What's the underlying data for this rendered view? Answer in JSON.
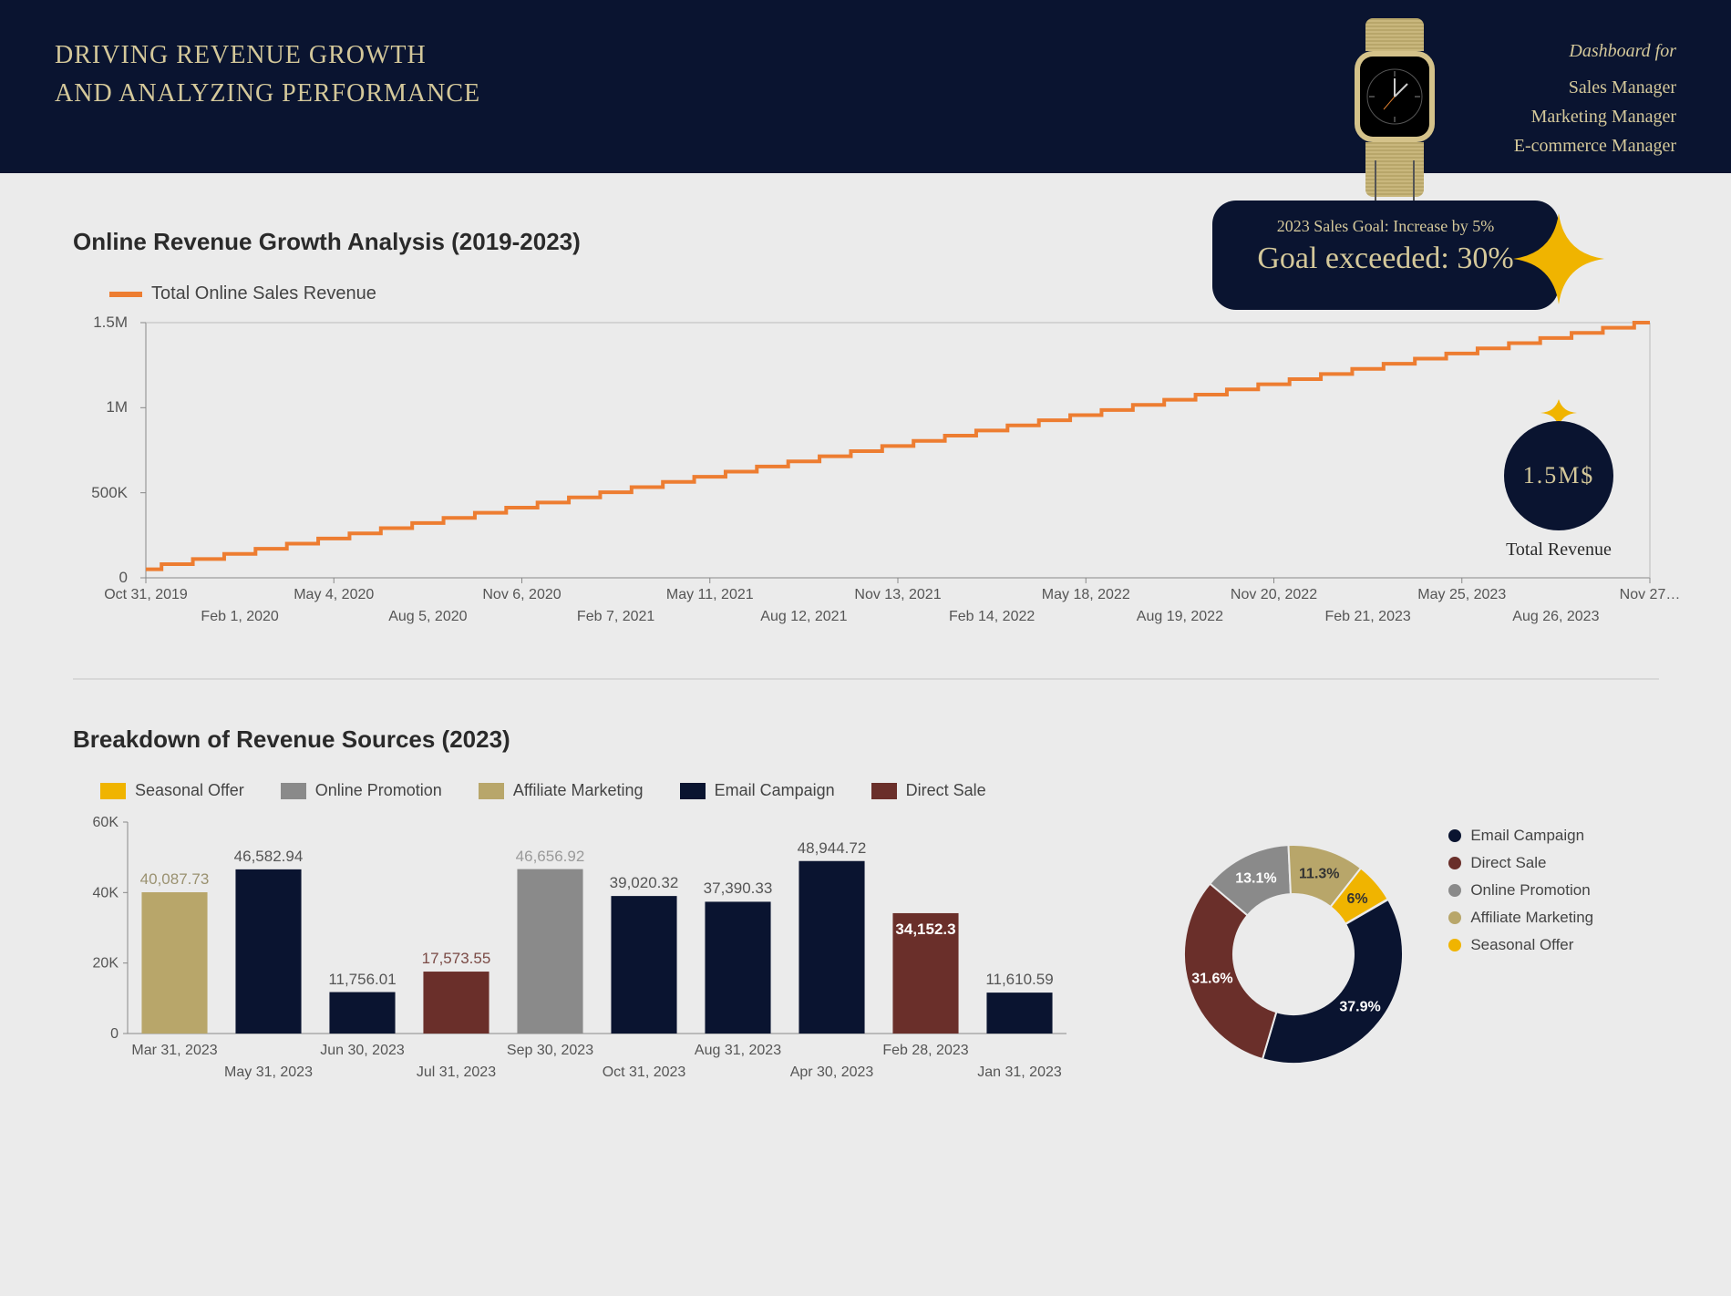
{
  "header": {
    "title_line1": "DRIVING REVENUE GROWTH",
    "title_line2": "AND ANALYZING PERFORMANCE",
    "for_label": "Dashboard for",
    "roles": [
      "Sales Manager",
      "Marketing Manager",
      "E-commerce Manager"
    ]
  },
  "colors": {
    "header_bg": "#0a1430",
    "accent_gold": "#d4c89a",
    "accent_orange": "#ed7d31",
    "yellow": "#f0b400",
    "page_bg": "#ebebeb",
    "navy": "#0a1430",
    "darkred": "#6a2f2a",
    "grey": "#8a8a8a",
    "khaki": "#b8a66a"
  },
  "goal": {
    "small": "2023 Sales Goal: Increase by 5%",
    "big": "Goal exceeded: 30%"
  },
  "line_chart": {
    "title": "Online Revenue Growth Analysis (2019-2023)",
    "legend_label": "Total Online Sales Revenue",
    "line_color": "#ed7d31",
    "line_width": 4,
    "y_ticks": [
      {
        "value": 0,
        "label": "0"
      },
      {
        "value": 500000,
        "label": "500K"
      },
      {
        "value": 1000000,
        "label": "1M"
      },
      {
        "value": 1500000,
        "label": "1.5M"
      }
    ],
    "y_max": 1500000,
    "x_ticks_top": [
      "Oct 31, 2019",
      "May 4, 2020",
      "Nov 6, 2020",
      "May 11, 2021",
      "Nov 13, 2021",
      "May 18, 2022",
      "Nov 20, 2022",
      "May 25, 2023",
      "Nov 27…"
    ],
    "x_ticks_bottom": [
      "Feb 1, 2020",
      "Aug 5, 2020",
      "Feb 7, 2021",
      "Aug 12, 2021",
      "Feb 14, 2022",
      "Aug 19, 2022",
      "Feb 21, 2023",
      "Aug 26, 2023"
    ],
    "start_value": 50000,
    "end_value": 1500000,
    "steps": 48
  },
  "revenue_badge": {
    "value": "1.5M$",
    "label": "Total Revenue"
  },
  "bar_chart": {
    "title": "Breakdown of Revenue Sources (2023)",
    "y_max": 60000,
    "y_ticks": [
      {
        "value": 0,
        "label": "0"
      },
      {
        "value": 20000,
        "label": "20K"
      },
      {
        "value": 40000,
        "label": "40K"
      },
      {
        "value": 60000,
        "label": "60K"
      }
    ],
    "legend": [
      {
        "label": "Seasonal Offer",
        "color": "#f0b400"
      },
      {
        "label": "Online Promotion",
        "color": "#8a8a8a"
      },
      {
        "label": "Affiliate Marketing",
        "color": "#b8a66a"
      },
      {
        "label": "Email Campaign",
        "color": "#0a1430"
      },
      {
        "label": "Direct Sale",
        "color": "#6a2f2a"
      }
    ],
    "bars": [
      {
        "value": 40087.73,
        "label": "40,087.73",
        "color": "#b8a66a",
        "label_color": "#9a9170"
      },
      {
        "value": 46582.94,
        "label": "46,582.94",
        "color": "#0a1430",
        "label_color": "#555"
      },
      {
        "value": 11756.01,
        "label": "11,756.01",
        "color": "#0a1430",
        "label_color": "#555"
      },
      {
        "value": 17573.55,
        "label": "17,573.55",
        "color": "#6a2f2a",
        "label_color": "#7a4a45"
      },
      {
        "value": 46656.92,
        "label": "46,656.92",
        "color": "#8a8a8a",
        "label_color": "#9a9a9a"
      },
      {
        "value": 39020.32,
        "label": "39,020.32",
        "color": "#0a1430",
        "label_color": "#555"
      },
      {
        "value": 37390.33,
        "label": "37,390.33",
        "color": "#0a1430",
        "label_color": "#555"
      },
      {
        "value": 48944.72,
        "label": "48,944.72",
        "color": "#0a1430",
        "label_color": "#555"
      },
      {
        "value": 34152.3,
        "label": "34,152.3",
        "color": "#6a2f2a",
        "label_color": "#fff",
        "label_inside": true
      },
      {
        "value": 11610.59,
        "label": "11,610.59",
        "color": "#0a1430",
        "label_color": "#555"
      }
    ],
    "x_ticks_top": [
      "Mar 31, 2023",
      "Jun 30, 2023",
      "Sep 30, 2023",
      "Aug 31, 2023",
      "Feb 28, 2023"
    ],
    "x_ticks_bottom": [
      "May 31, 2023",
      "Jul 31, 2023",
      "Oct 31, 2023",
      "Apr 30, 2023",
      "Jan 31, 2023"
    ]
  },
  "donut": {
    "slices": [
      {
        "label": "Email Campaign",
        "pct": 37.9,
        "color": "#0a1430",
        "text": "37.9%",
        "text_color": "light"
      },
      {
        "label": "Direct Sale",
        "pct": 31.6,
        "color": "#6a2f2a",
        "text": "31.6%",
        "text_color": "light"
      },
      {
        "label": "Online Promotion",
        "pct": 13.1,
        "color": "#8a8a8a",
        "text": "13.1%",
        "text_color": "light"
      },
      {
        "label": "Affiliate Marketing",
        "pct": 11.3,
        "color": "#b8a66a",
        "text": "11.3%",
        "text_color": "dark"
      },
      {
        "label": "Seasonal Offer",
        "pct": 6.0,
        "color": "#f0b400",
        "text": "6%",
        "text_color": "dark"
      }
    ],
    "start_angle_deg": -30
  }
}
